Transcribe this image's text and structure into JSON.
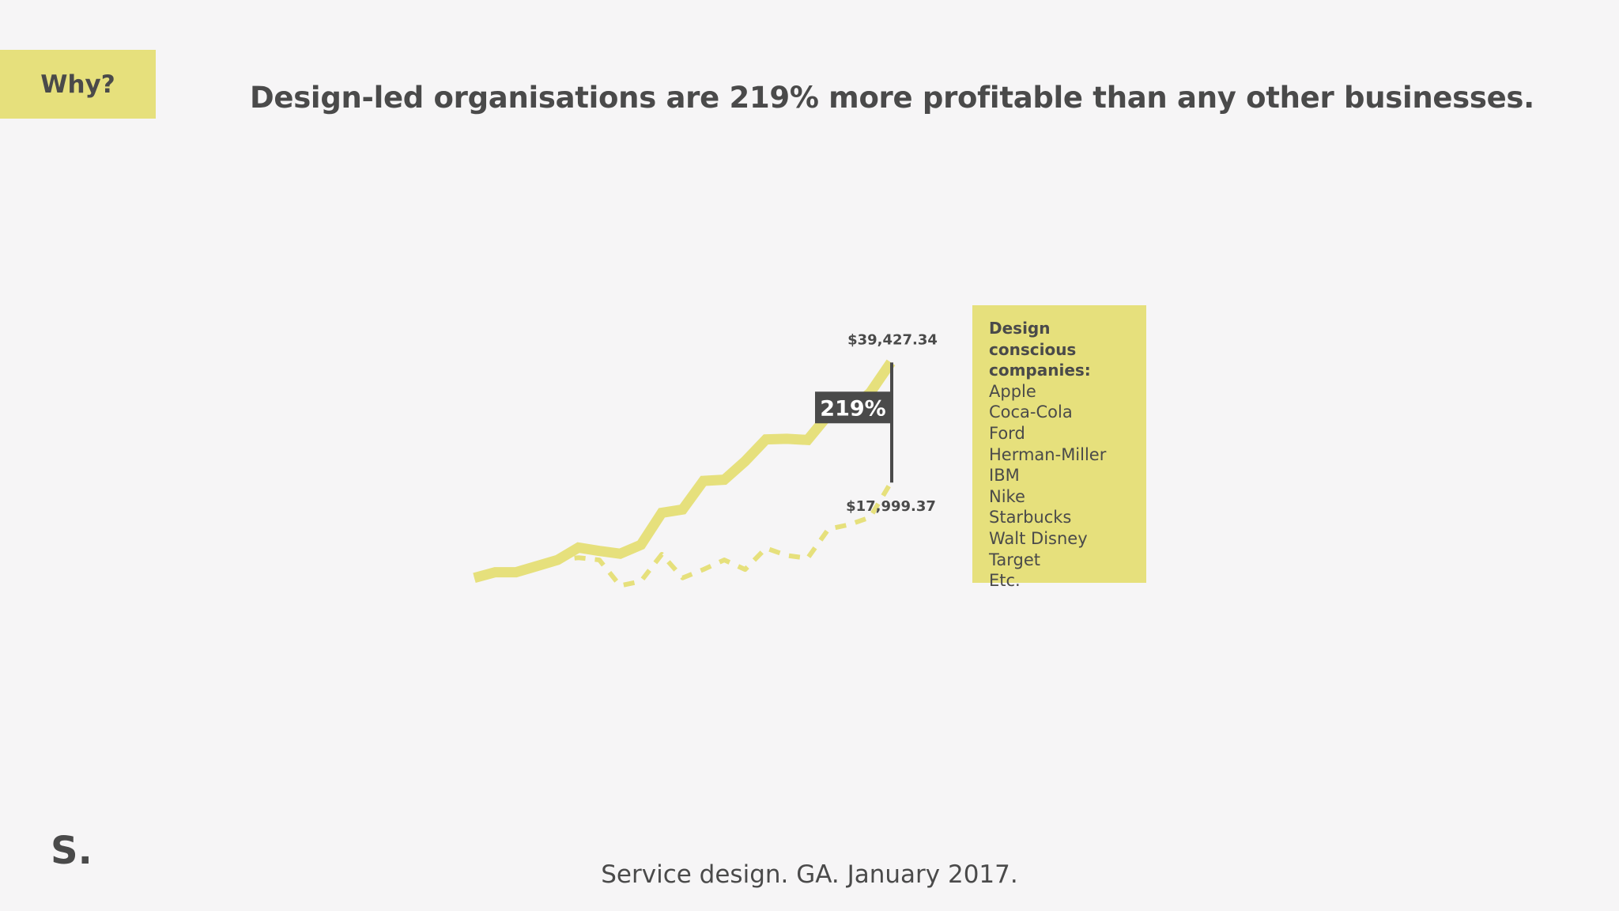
{
  "section_tag": "Why?",
  "headline": "Design-led organisations are 219% more profitable than any other businesses.",
  "chart_data": {
    "type": "line",
    "title": "",
    "xlabel": "",
    "ylabel": "",
    "grid": false,
    "x": [
      0,
      1,
      2,
      3,
      4,
      5,
      6,
      7,
      8,
      9,
      10,
      11,
      12,
      13,
      14,
      15,
      16,
      17,
      18,
      19,
      20
    ],
    "series": [
      {
        "style": "solid",
        "color": "#e6e07c",
        "values": [
          1000,
          2000,
          2000,
          3100,
          4200,
          6400,
          5800,
          5300,
          6900,
          12600,
          13200,
          18300,
          18500,
          21800,
          25700,
          25800,
          25600,
          30100,
          31000,
          34000,
          39427.34
        ]
      },
      {
        "style": "dashed",
        "color": "#e6e07c",
        "values": [
          1000,
          2000,
          2000,
          3100,
          4200,
          4600,
          4200,
          -400,
          400,
          5200,
          1000,
          2500,
          4200,
          2500,
          6300,
          5000,
          4500,
          9700,
          10500,
          11800,
          17999.37
        ]
      }
    ],
    "end_labels": {
      "top": "$39,427.34",
      "bottom": "$17,999.37"
    },
    "difference_label": "219%",
    "ylim": [
      -2000,
      43000
    ],
    "annotation_color": "#4a4a4a"
  },
  "legend": {
    "title": "Design conscious companies:",
    "items": [
      "Apple",
      "Coca-Cola",
      "Ford",
      "Herman-Miller",
      "IBM",
      "Nike",
      "Starbucks",
      "Walt Disney",
      "Target",
      "Etc."
    ]
  },
  "logo": "S.",
  "footer": "Service design. GA. January 2017."
}
